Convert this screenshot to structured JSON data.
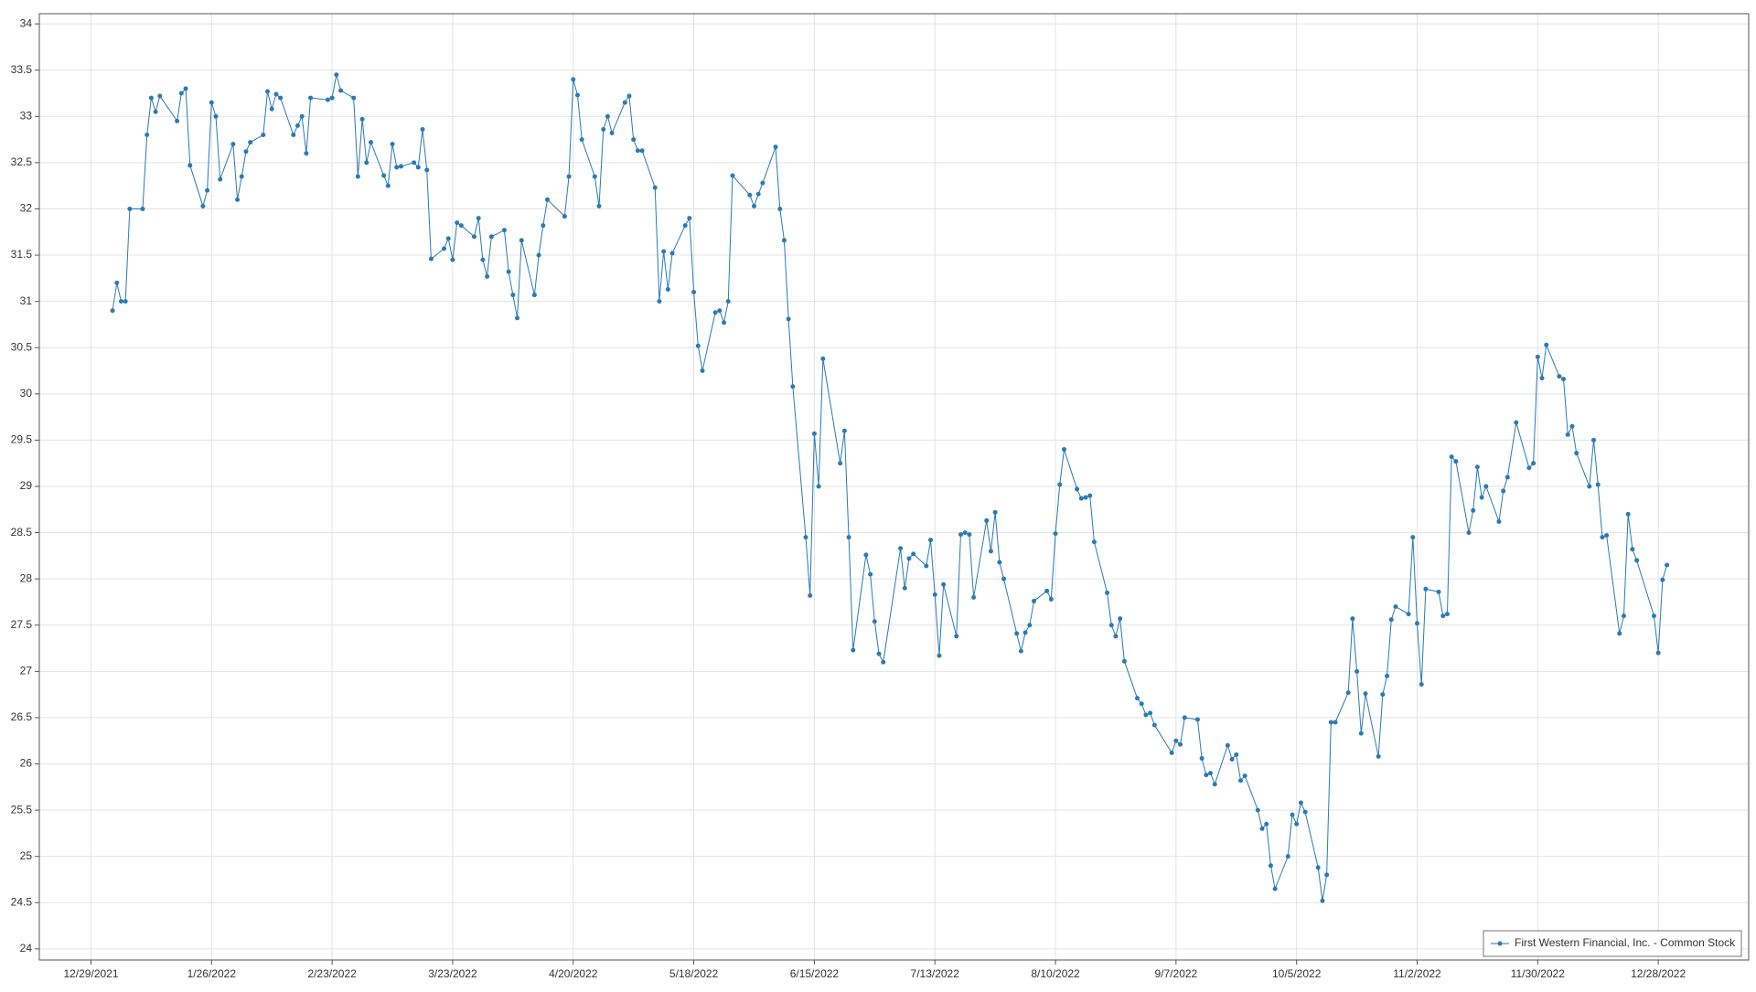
{
  "chart_data": {
    "type": "line",
    "x": [
      "1/3/2022",
      "1/4/2022",
      "1/5/2022",
      "1/6/2022",
      "1/7/2022",
      "1/10/2022",
      "1/11/2022",
      "1/12/2022",
      "1/13/2022",
      "1/14/2022",
      "1/18/2022",
      "1/19/2022",
      "1/20/2022",
      "1/21/2022",
      "1/24/2022",
      "1/25/2022",
      "1/26/2022",
      "1/27/2022",
      "1/28/2022",
      "1/31/2022",
      "2/1/2022",
      "2/2/2022",
      "2/3/2022",
      "2/4/2022",
      "2/7/2022",
      "2/8/2022",
      "2/9/2022",
      "2/10/2022",
      "2/11/2022",
      "2/14/2022",
      "2/15/2022",
      "2/16/2022",
      "2/17/2022",
      "2/18/2022",
      "2/22/2022",
      "2/23/2022",
      "2/24/2022",
      "2/25/2022",
      "2/28/2022",
      "3/1/2022",
      "3/2/2022",
      "3/3/2022",
      "3/4/2022",
      "3/7/2022",
      "3/8/2022",
      "3/9/2022",
      "3/10/2022",
      "3/11/2022",
      "3/14/2022",
      "3/15/2022",
      "3/16/2022",
      "3/17/2022",
      "3/18/2022",
      "3/21/2022",
      "3/22/2022",
      "3/23/2022",
      "3/24/2022",
      "3/25/2022",
      "3/28/2022",
      "3/29/2022",
      "3/30/2022",
      "3/31/2022",
      "4/1/2022",
      "4/4/2022",
      "4/5/2022",
      "4/6/2022",
      "4/7/2022",
      "4/8/2022",
      "4/11/2022",
      "4/12/2022",
      "4/13/2022",
      "4/14/2022",
      "4/18/2022",
      "4/19/2022",
      "4/20/2022",
      "4/21/2022",
      "4/22/2022",
      "4/25/2022",
      "4/26/2022",
      "4/27/2022",
      "4/28/2022",
      "4/29/2022",
      "5/2/2022",
      "5/3/2022",
      "5/4/2022",
      "5/5/2022",
      "5/6/2022",
      "5/9/2022",
      "5/10/2022",
      "5/11/2022",
      "5/12/2022",
      "5/13/2022",
      "5/16/2022",
      "5/17/2022",
      "5/18/2022",
      "5/19/2022",
      "5/20/2022",
      "5/23/2022",
      "5/24/2022",
      "5/25/2022",
      "5/26/2022",
      "5/27/2022",
      "5/31/2022",
      "6/1/2022",
      "6/2/2022",
      "6/3/2022",
      "6/6/2022",
      "6/7/2022",
      "6/8/2022",
      "6/9/2022",
      "6/10/2022",
      "6/13/2022",
      "6/14/2022",
      "6/15/2022",
      "6/16/2022",
      "6/17/2022",
      "6/21/2022",
      "6/22/2022",
      "6/23/2022",
      "6/24/2022",
      "6/27/2022",
      "6/28/2022",
      "6/29/2022",
      "6/30/2022",
      "7/1/2022",
      "7/5/2022",
      "7/6/2022",
      "7/7/2022",
      "7/8/2022",
      "7/11/2022",
      "7/12/2022",
      "7/13/2022",
      "7/14/2022",
      "7/15/2022",
      "7/18/2022",
      "7/19/2022",
      "7/20/2022",
      "7/21/2022",
      "7/22/2022",
      "7/25/2022",
      "7/26/2022",
      "7/27/2022",
      "7/28/2022",
      "7/29/2022",
      "8/1/2022",
      "8/2/2022",
      "8/3/2022",
      "8/4/2022",
      "8/5/2022",
      "8/8/2022",
      "8/9/2022",
      "8/10/2022",
      "8/11/2022",
      "8/12/2022",
      "8/15/2022",
      "8/16/2022",
      "8/17/2022",
      "8/18/2022",
      "8/19/2022",
      "8/22/2022",
      "8/23/2022",
      "8/24/2022",
      "8/25/2022",
      "8/26/2022",
      "8/29/2022",
      "8/30/2022",
      "8/31/2022",
      "9/1/2022",
      "9/2/2022",
      "9/6/2022",
      "9/7/2022",
      "9/8/2022",
      "9/9/2022",
      "9/12/2022",
      "9/13/2022",
      "9/14/2022",
      "9/15/2022",
      "9/16/2022",
      "9/19/2022",
      "9/20/2022",
      "9/21/2022",
      "9/22/2022",
      "9/23/2022",
      "9/26/2022",
      "9/27/2022",
      "9/28/2022",
      "9/29/2022",
      "9/30/2022",
      "10/3/2022",
      "10/4/2022",
      "10/5/2022",
      "10/6/2022",
      "10/7/2022",
      "10/10/2022",
      "10/11/2022",
      "10/12/2022",
      "10/13/2022",
      "10/14/2022",
      "10/17/2022",
      "10/18/2022",
      "10/19/2022",
      "10/20/2022",
      "10/21/2022",
      "10/24/2022",
      "10/25/2022",
      "10/26/2022",
      "10/27/2022",
      "10/28/2022",
      "10/31/2022",
      "11/1/2022",
      "11/2/2022",
      "11/3/2022",
      "11/4/2022",
      "11/7/2022",
      "11/8/2022",
      "11/9/2022",
      "11/10/2022",
      "11/11/2022",
      "11/14/2022",
      "11/15/2022",
      "11/16/2022",
      "11/17/2022",
      "11/18/2022",
      "11/21/2022",
      "11/22/2022",
      "11/23/2022",
      "11/25/2022",
      "11/28/2022",
      "11/29/2022",
      "11/30/2022",
      "12/1/2022",
      "12/2/2022",
      "12/5/2022",
      "12/6/2022",
      "12/7/2022",
      "12/8/2022",
      "12/9/2022",
      "12/12/2022",
      "12/13/2022",
      "12/14/2022",
      "12/15/2022",
      "12/16/2022",
      "12/19/2022",
      "12/20/2022",
      "12/21/2022",
      "12/22/2022",
      "12/23/2022",
      "12/27/2022",
      "12/28/2022",
      "12/29/2022",
      "12/30/2022"
    ],
    "series": [
      {
        "name": "First Western Financial, Inc. - Common Stock",
        "color": "#2a7ab5",
        "values": [
          30.9,
          31.2,
          31.0,
          31.0,
          32.0,
          32.0,
          32.8,
          33.2,
          33.05,
          33.22,
          32.95,
          33.25,
          33.3,
          32.47,
          32.03,
          32.2,
          33.15,
          33.0,
          32.32,
          32.7,
          32.1,
          32.35,
          32.62,
          32.72,
          32.8,
          33.27,
          33.08,
          33.24,
          33.2,
          32.8,
          32.9,
          33.0,
          32.6,
          33.2,
          33.18,
          33.2,
          33.45,
          33.28,
          33.2,
          32.35,
          32.97,
          32.5,
          32.72,
          32.36,
          32.25,
          32.7,
          32.45,
          32.46,
          32.5,
          32.45,
          32.86,
          32.42,
          31.46,
          31.57,
          31.68,
          31.45,
          31.85,
          31.82,
          31.7,
          31.9,
          31.45,
          31.27,
          31.7,
          31.77,
          31.32,
          31.07,
          30.82,
          31.66,
          31.07,
          31.5,
          31.82,
          32.1,
          31.92,
          32.35,
          33.4,
          33.23,
          32.75,
          32.35,
          32.03,
          32.86,
          33.0,
          32.82,
          33.15,
          33.22,
          32.75,
          32.63,
          32.63,
          32.23,
          31.0,
          31.54,
          31.13,
          31.52,
          31.82,
          31.9,
          31.1,
          30.52,
          30.25,
          30.88,
          30.9,
          30.77,
          31.0,
          32.36,
          32.15,
          32.03,
          32.16,
          32.28,
          32.67,
          32.0,
          31.66,
          30.81,
          30.08,
          28.45,
          27.82,
          29.57,
          29.0,
          30.38,
          29.25,
          29.6,
          28.45,
          27.23,
          28.26,
          28.05,
          27.54,
          27.19,
          27.1,
          28.33,
          27.9,
          28.22,
          28.27,
          28.14,
          28.42,
          27.83,
          27.17,
          27.94,
          27.38,
          28.48,
          28.5,
          28.48,
          27.8,
          28.63,
          28.3,
          28.72,
          28.18,
          28.0,
          27.41,
          27.22,
          27.42,
          27.5,
          27.76,
          27.87,
          27.78,
          28.49,
          29.02,
          29.4,
          28.97,
          28.87,
          28.88,
          28.9,
          28.4,
          27.85,
          27.5,
          27.38,
          27.57,
          27.11,
          26.71,
          26.65,
          26.53,
          26.55,
          26.42,
          26.12,
          26.25,
          26.21,
          26.5,
          26.48,
          26.06,
          25.88,
          25.9,
          25.78,
          26.2,
          26.05,
          26.1,
          25.82,
          25.87,
          25.5,
          25.3,
          25.35,
          24.9,
          24.65,
          25.0,
          25.45,
          25.35,
          25.58,
          25.48,
          24.88,
          24.52,
          24.8,
          26.45,
          26.45,
          26.77,
          27.57,
          27.0,
          26.33,
          26.76,
          26.08,
          26.75,
          26.95,
          27.56,
          27.7,
          27.62,
          28.45,
          27.52,
          26.86,
          27.89,
          27.86,
          27.6,
          27.62,
          29.32,
          29.27,
          28.5,
          28.74,
          29.21,
          28.88,
          29.0,
          28.62,
          28.95,
          29.1,
          29.69,
          29.2,
          29.25,
          30.4,
          30.17,
          30.53,
          30.19,
          30.16,
          29.56,
          29.65,
          29.36,
          29.0,
          29.5,
          29.02,
          28.45,
          28.47,
          27.41,
          27.6,
          28.7,
          28.32,
          28.2,
          27.6,
          27.2,
          27.99,
          28.15
        ]
      }
    ],
    "xlim": [
      "12/17/2021",
      "1/18/2023"
    ],
    "xticks": [
      "12/29/2021",
      "1/26/2022",
      "2/23/2022",
      "3/23/2022",
      "4/20/2022",
      "5/18/2022",
      "6/15/2022",
      "7/13/2022",
      "8/10/2022",
      "9/7/2022",
      "10/5/2022",
      "11/2/2022",
      "11/30/2022",
      "12/28/2022"
    ],
    "ylim": [
      23.88,
      34.11
    ],
    "yticks": [
      24,
      24.5,
      25,
      25.5,
      26,
      26.5,
      27,
      27.5,
      28,
      28.5,
      29,
      29.5,
      30,
      30.5,
      31,
      31.5,
      32,
      32.5,
      33,
      33.5,
      34
    ],
    "grid": true,
    "legend": "lower right"
  }
}
